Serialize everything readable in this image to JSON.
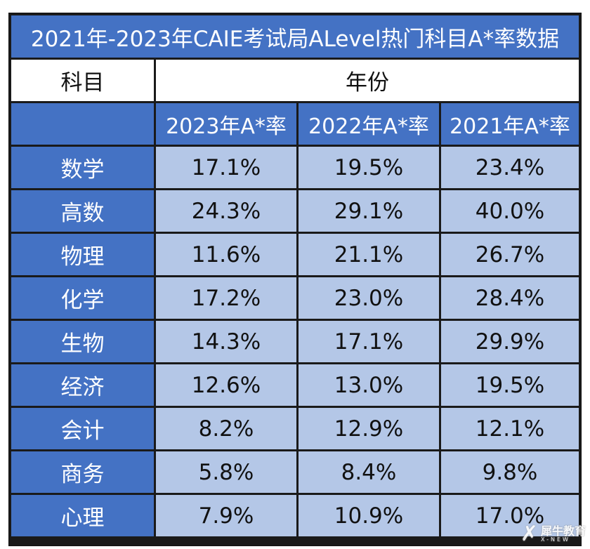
{
  "table": {
    "title": "2021年-2023年CAIE考试局ALevel热门科目A*率数据",
    "subject_header": "科目",
    "year_header": "年份",
    "columns": [
      "2023年A*率",
      "2022年A*率",
      "2021年A*率"
    ],
    "rows": [
      {
        "subject": "数学",
        "values": [
          "17.1%",
          "19.5%",
          "23.4%"
        ]
      },
      {
        "subject": "高数",
        "values": [
          "24.3%",
          "29.1%",
          "40.0%"
        ]
      },
      {
        "subject": "物理",
        "values": [
          "11.6%",
          "21.1%",
          "26.7%"
        ]
      },
      {
        "subject": "化学",
        "values": [
          "17.2%",
          "23.0%",
          "28.4%"
        ]
      },
      {
        "subject": "生物",
        "values": [
          "14.3%",
          "17.1%",
          "29.9%"
        ]
      },
      {
        "subject": "经济",
        "values": [
          "12.6%",
          "13.0%",
          "19.5%"
        ]
      },
      {
        "subject": "会计",
        "values": [
          "8.2%",
          "12.9%",
          "12.1%"
        ]
      },
      {
        "subject": "商务",
        "values": [
          "5.8%",
          "8.4%",
          "9.8%"
        ]
      },
      {
        "subject": "心理",
        "values": [
          "7.9%",
          "10.9%",
          "17.0%"
        ]
      }
    ]
  },
  "watermark": {
    "cn": "犀牛教育",
    "en": "X-NEW"
  },
  "colors": {
    "header_blue": "#4472c4",
    "cell_light_blue": "#b4c7e7",
    "border": "#1a1a1a"
  }
}
